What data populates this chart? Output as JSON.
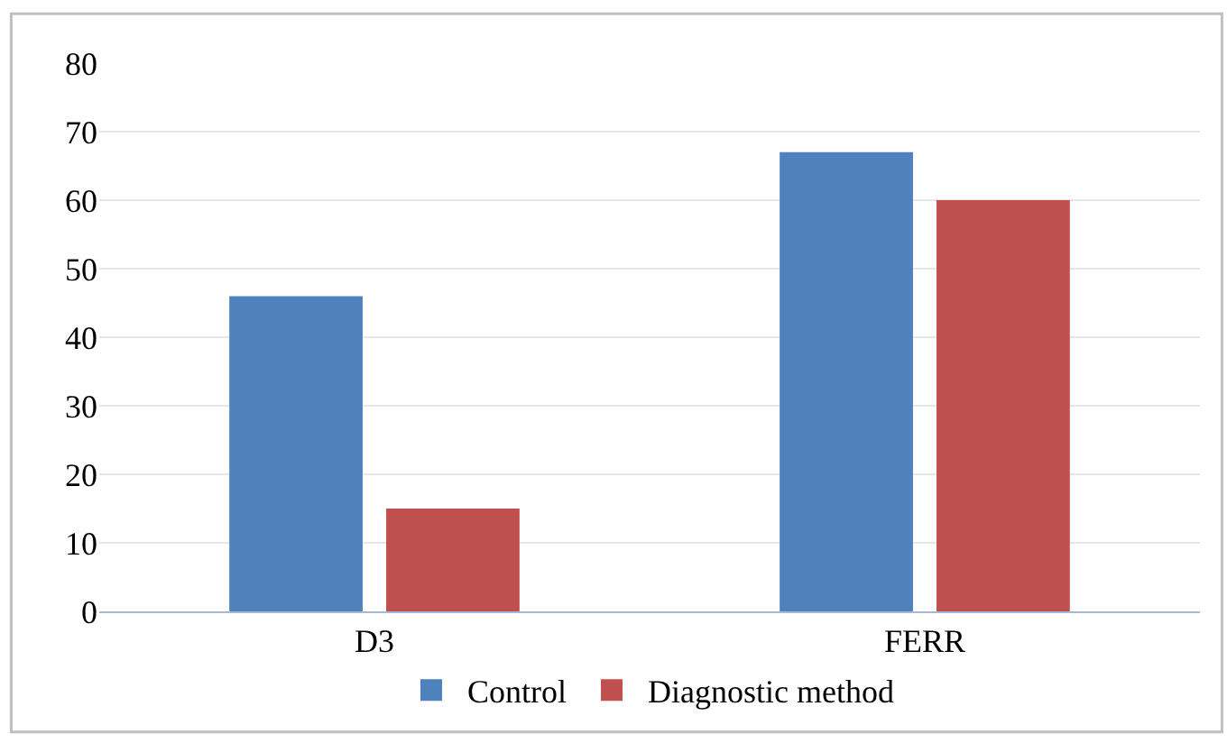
{
  "chart_data": {
    "type": "bar",
    "categories": [
      "D3",
      "FERR"
    ],
    "series": [
      {
        "name": "Control",
        "color": "#4f81bd",
        "values": [
          46,
          67
        ]
      },
      {
        "name": "Diagnostic method",
        "color": "#c0504d",
        "values": [
          15,
          60
        ]
      }
    ],
    "ylim": [
      0,
      80
    ],
    "yticks": [
      0,
      10,
      20,
      30,
      40,
      50,
      60,
      70,
      80
    ],
    "grid": "y",
    "legend": "bottom"
  }
}
